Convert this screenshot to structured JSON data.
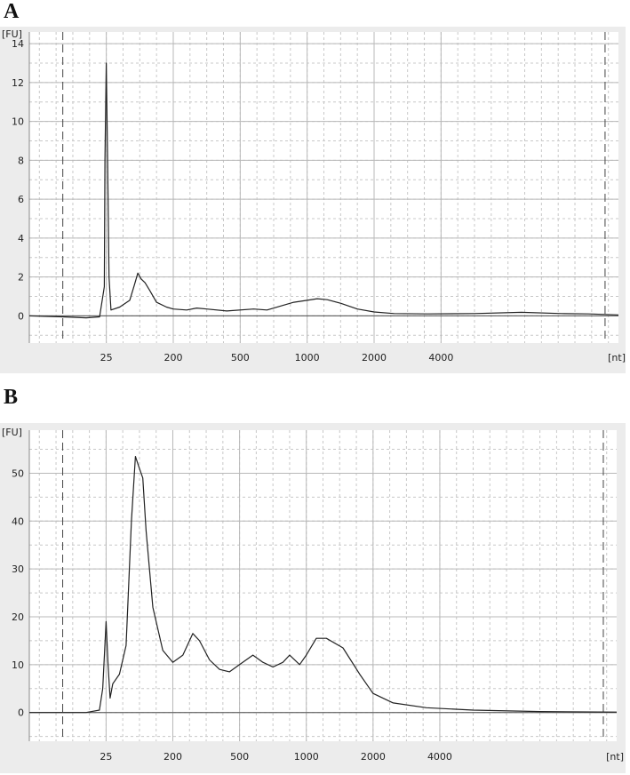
{
  "panels": [
    {
      "label": "A"
    },
    {
      "label": "B"
    }
  ],
  "chart_data": [
    {
      "type": "line",
      "panel": "A",
      "ylabel": "[FU]",
      "xlabel": "[nt]",
      "ylim": [
        -1.4,
        14.6
      ],
      "yticks": [
        0,
        2,
        4,
        6,
        8,
        10,
        12,
        14
      ],
      "xticks": [
        {
          "label": "25",
          "pos": 0
        },
        {
          "label": "200",
          "pos": 1
        },
        {
          "label": "500",
          "pos": 2
        },
        {
          "label": "1000",
          "pos": 3
        },
        {
          "label": "2000",
          "pos": 4
        },
        {
          "label": "4000",
          "pos": 5
        }
      ],
      "xlim": [
        -1.15,
        7.65
      ],
      "marker_lines": [
        -0.65,
        7.45
      ],
      "grid": true,
      "series": [
        {
          "values": [
            [
              -1.15,
              0.0
            ],
            [
              -0.65,
              -0.05
            ],
            [
              -0.3,
              -0.1
            ],
            [
              -0.1,
              -0.05
            ],
            [
              -0.03,
              1.5
            ],
            [
              -0.02,
              8.0
            ],
            [
              0.0,
              13.0
            ],
            [
              0.02,
              8.0
            ],
            [
              0.04,
              2.0
            ],
            [
              0.07,
              0.3
            ],
            [
              0.2,
              0.45
            ],
            [
              0.35,
              0.8
            ],
            [
              0.42,
              1.6
            ],
            [
              0.47,
              2.2
            ],
            [
              0.52,
              1.9
            ],
            [
              0.58,
              1.7
            ],
            [
              0.65,
              1.3
            ],
            [
              0.75,
              0.7
            ],
            [
              0.9,
              0.45
            ],
            [
              1.0,
              0.35
            ],
            [
              1.2,
              0.3
            ],
            [
              1.35,
              0.4
            ],
            [
              1.5,
              0.35
            ],
            [
              1.8,
              0.25
            ],
            [
              2.2,
              0.35
            ],
            [
              2.4,
              0.3
            ],
            [
              2.6,
              0.5
            ],
            [
              2.8,
              0.7
            ],
            [
              3.0,
              0.8
            ],
            [
              3.15,
              0.88
            ],
            [
              3.3,
              0.83
            ],
            [
              3.5,
              0.65
            ],
            [
              3.75,
              0.35
            ],
            [
              4.0,
              0.2
            ],
            [
              4.3,
              0.12
            ],
            [
              4.8,
              0.1
            ],
            [
              5.5,
              0.12
            ],
            [
              6.2,
              0.18
            ],
            [
              6.8,
              0.12
            ],
            [
              7.2,
              0.1
            ],
            [
              7.65,
              0.05
            ]
          ]
        }
      ]
    },
    {
      "type": "line",
      "panel": "B",
      "ylabel": "[FU]",
      "xlabel": "[nt]",
      "ylim": [
        -6,
        59
      ],
      "yticks": [
        0,
        10,
        20,
        30,
        40,
        50
      ],
      "xticks": [
        {
          "label": "25",
          "pos": 0
        },
        {
          "label": "200",
          "pos": 1
        },
        {
          "label": "500",
          "pos": 2
        },
        {
          "label": "1000",
          "pos": 3
        },
        {
          "label": "2000",
          "pos": 4
        },
        {
          "label": "4000",
          "pos": 5
        }
      ],
      "xlim": [
        -1.15,
        7.65
      ],
      "marker_lines": [
        -0.65,
        7.45
      ],
      "grid": true,
      "series": [
        {
          "values": [
            [
              -1.15,
              0.0
            ],
            [
              -0.3,
              0.0
            ],
            [
              -0.1,
              0.5
            ],
            [
              -0.05,
              5.0
            ],
            [
              0.0,
              19.0
            ],
            [
              0.03,
              10.0
            ],
            [
              0.06,
              3.0
            ],
            [
              0.1,
              6.0
            ],
            [
              0.2,
              8.0
            ],
            [
              0.3,
              14.0
            ],
            [
              0.38,
              40.0
            ],
            [
              0.44,
              53.5
            ],
            [
              0.5,
              51.0
            ],
            [
              0.55,
              49.0
            ],
            [
              0.6,
              38.0
            ],
            [
              0.7,
              22.0
            ],
            [
              0.85,
              13.0
            ],
            [
              1.0,
              10.5
            ],
            [
              1.15,
              12.0
            ],
            [
              1.3,
              16.5
            ],
            [
              1.4,
              15.0
            ],
            [
              1.55,
              11.0
            ],
            [
              1.7,
              9.0
            ],
            [
              1.85,
              8.5
            ],
            [
              2.0,
              10.0
            ],
            [
              2.2,
              12.0
            ],
            [
              2.35,
              10.5
            ],
            [
              2.5,
              9.5
            ],
            [
              2.65,
              10.5
            ],
            [
              2.75,
              12.0
            ],
            [
              2.9,
              10.0
            ],
            [
              3.0,
              12.0
            ],
            [
              3.15,
              15.5
            ],
            [
              3.3,
              15.5
            ],
            [
              3.55,
              13.5
            ],
            [
              3.8,
              8.0
            ],
            [
              4.0,
              4.0
            ],
            [
              4.3,
              2.0
            ],
            [
              4.8,
              1.0
            ],
            [
              5.5,
              0.5
            ],
            [
              6.5,
              0.2
            ],
            [
              7.65,
              0.1
            ]
          ]
        }
      ]
    }
  ]
}
